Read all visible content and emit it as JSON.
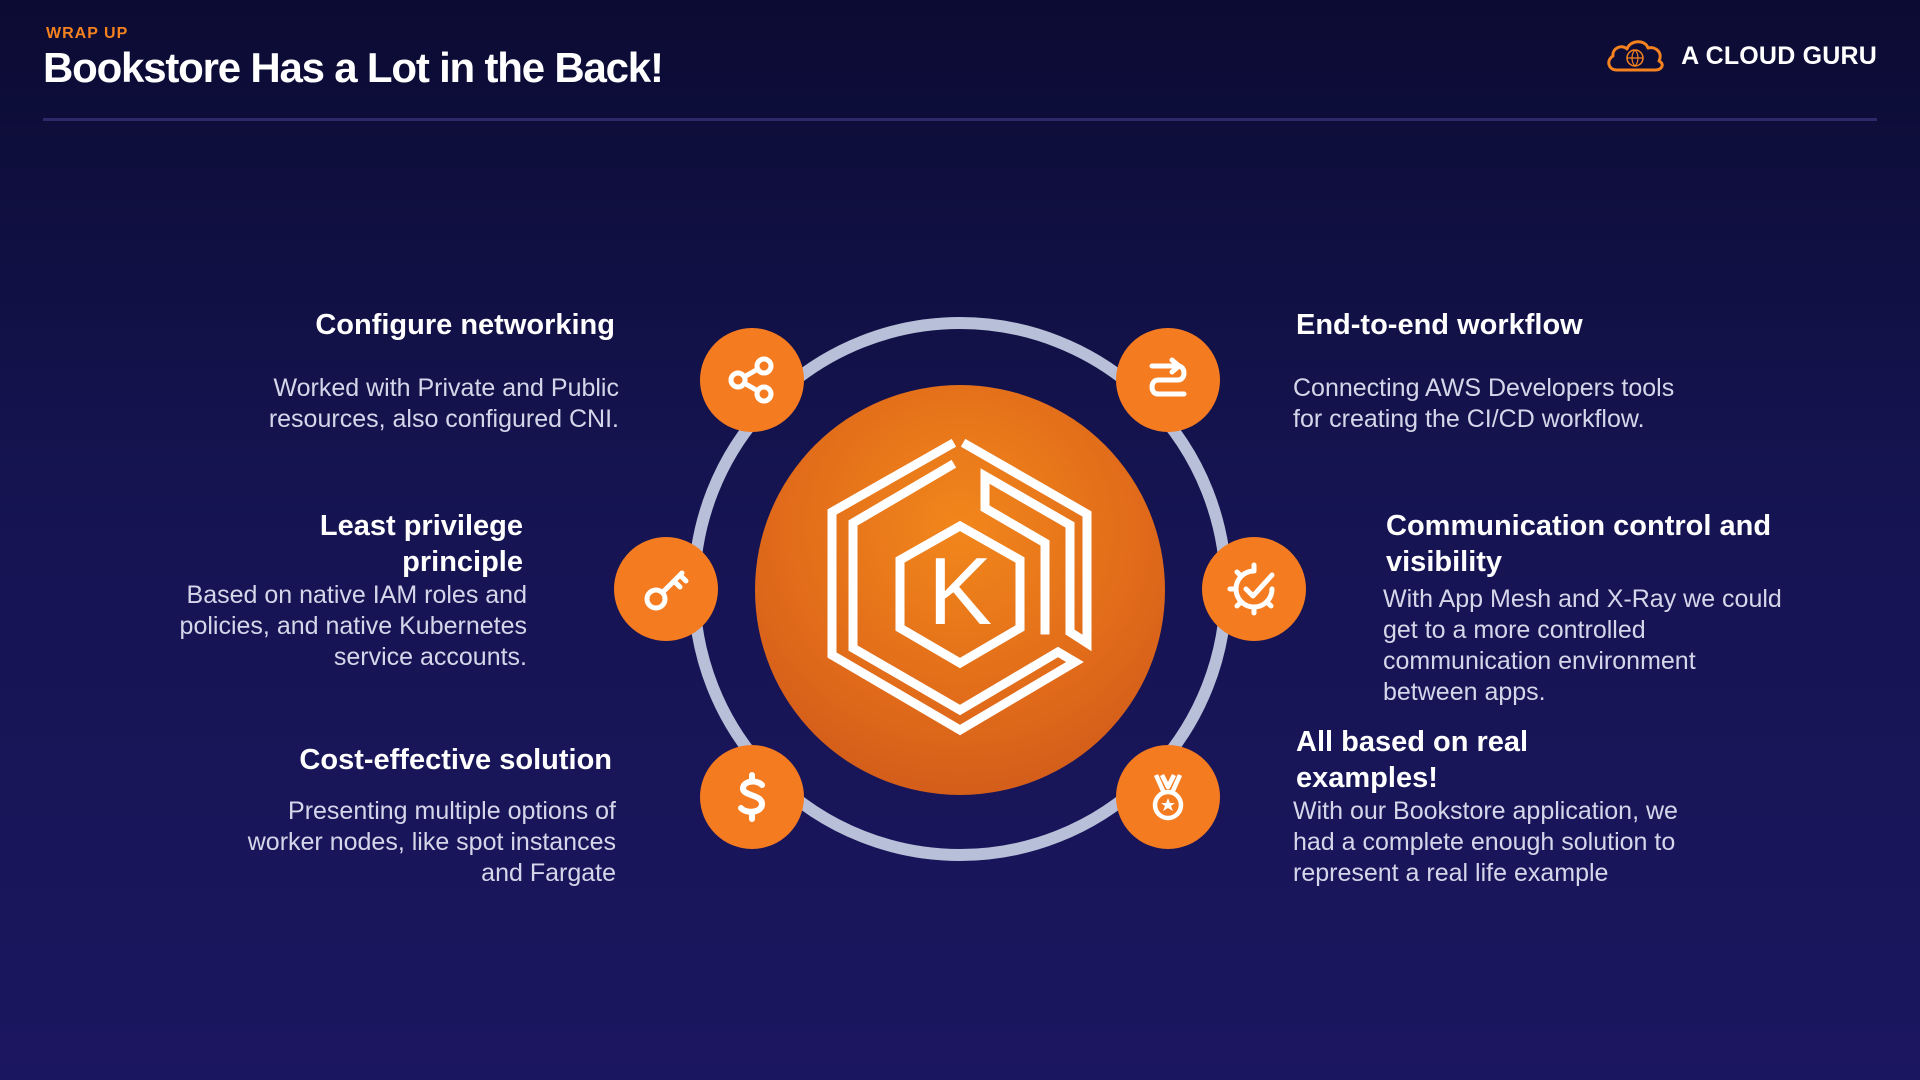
{
  "header": {
    "eyebrow": "WRAP UP",
    "title": "Bookstore Has a Lot in the Back!",
    "logo_text": "A CLOUD GURU"
  },
  "center": {
    "letter": "K",
    "icon": "kubernetes-eks-icon"
  },
  "features": {
    "networking": {
      "title": "Configure networking",
      "body": [
        "Worked with Private and Public",
        "resources, also configured CNI."
      ],
      "icon": "share-icon"
    },
    "privilege": {
      "title": [
        "Least privilege",
        "principle"
      ],
      "body": [
        "Based on native IAM roles and",
        "policies, and native Kubernetes",
        "service accounts."
      ],
      "icon": "key-icon"
    },
    "cost": {
      "title": "Cost-effective solution",
      "body": [
        "Presenting multiple options of",
        "worker nodes, like spot instances",
        "and Fargate"
      ],
      "icon": "dollar-icon"
    },
    "workflow": {
      "title": "End-to-end workflow",
      "body": [
        "Connecting AWS Developers tools",
        "for creating the CI/CD workflow."
      ],
      "icon": "workflow-arrow-icon"
    },
    "communication": {
      "title": [
        "Communication control and",
        "visibility"
      ],
      "body": [
        "With App Mesh and X-Ray we could",
        "get to a more controlled",
        "communication environment",
        "between apps."
      ],
      "icon": "gear-check-icon"
    },
    "examples": {
      "title": [
        "All based on real",
        "examples!"
      ],
      "body": [
        "With our Bookstore application, we",
        "had a complete enough solution to",
        "represent a real life example"
      ],
      "icon": "medal-icon"
    }
  },
  "colors": {
    "accent": "#f47b20",
    "ring": "#b8bfd8",
    "background_top": "#0b0b33",
    "background_bottom": "#1b1660"
  }
}
